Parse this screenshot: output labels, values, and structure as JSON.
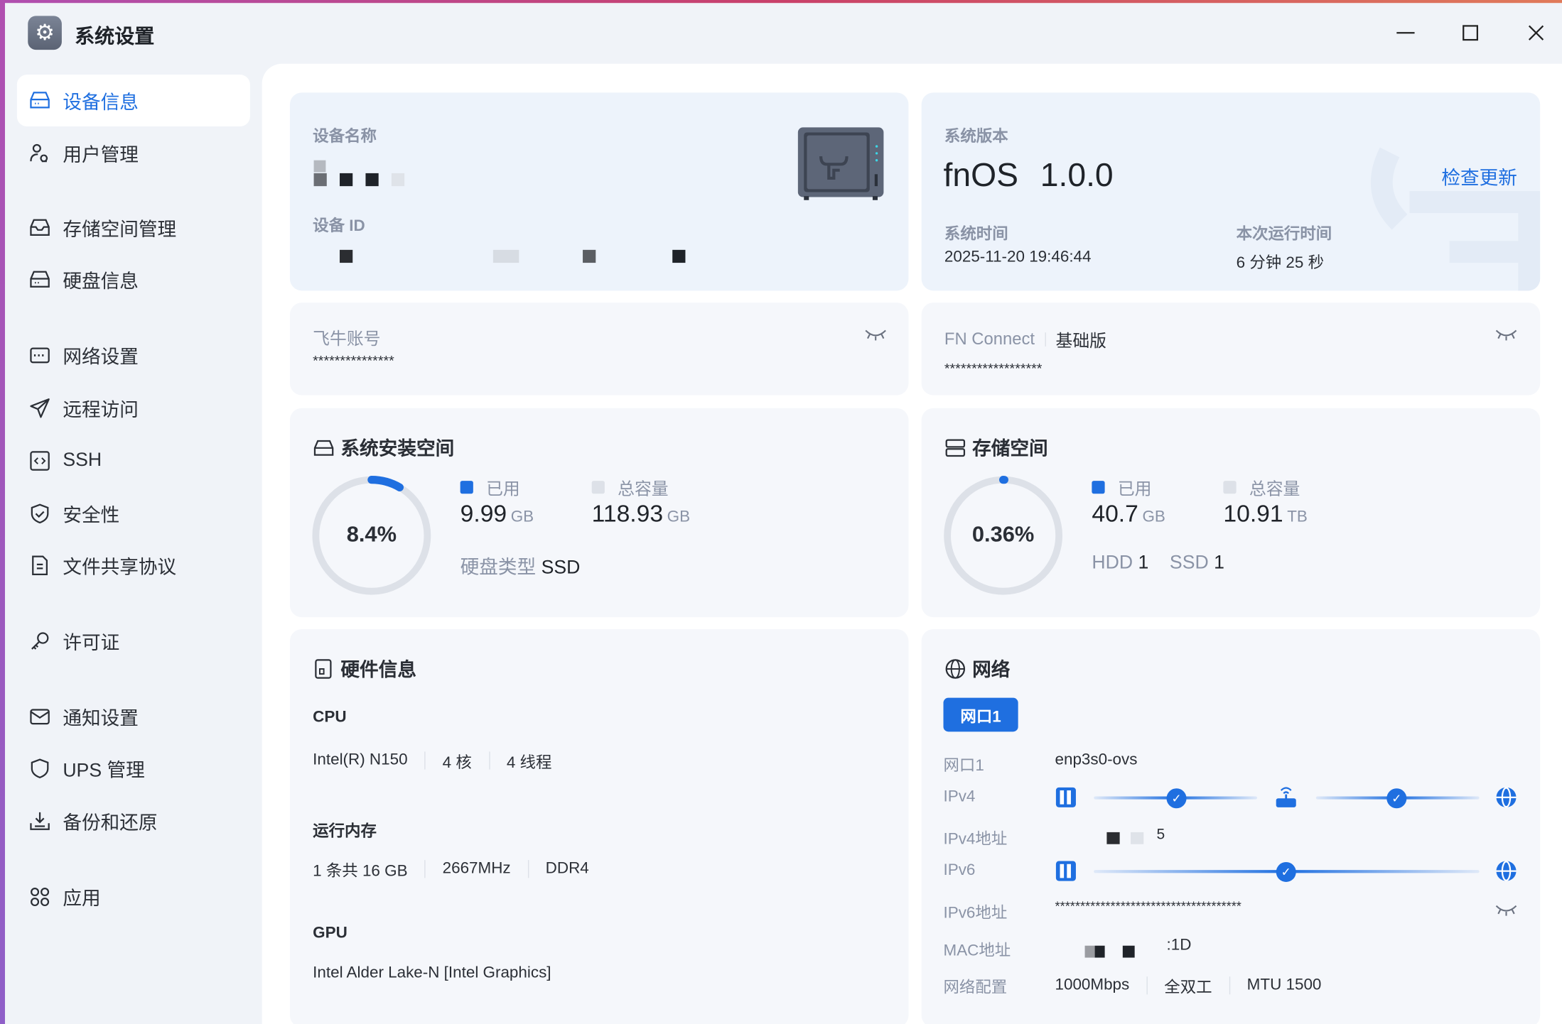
{
  "window": {
    "title": "系统设置",
    "minimize": "—",
    "maximize": "☐",
    "close": "✕"
  },
  "colors": {
    "accent": "#1f6fe0",
    "track": "#dde1e8"
  },
  "sidebar": {
    "items": [
      {
        "label": "设备信息",
        "icon": "device-icon",
        "active": true
      },
      {
        "label": "用户管理",
        "icon": "user-manage-icon"
      },
      {
        "label": "存储空间管理",
        "icon": "storage-icon"
      },
      {
        "label": "硬盘信息",
        "icon": "disk-icon"
      },
      {
        "label": "网络设置",
        "icon": "network-icon"
      },
      {
        "label": "远程访问",
        "icon": "send-icon"
      },
      {
        "label": "SSH",
        "icon": "terminal-icon"
      },
      {
        "label": "安全性",
        "icon": "shield-check-icon"
      },
      {
        "label": "文件共享协议",
        "icon": "file-icon"
      },
      {
        "label": "许可证",
        "icon": "key-icon"
      },
      {
        "label": "通知设置",
        "icon": "mail-icon"
      },
      {
        "label": "UPS 管理",
        "icon": "shield-icon"
      },
      {
        "label": "备份和还原",
        "icon": "download-icon"
      },
      {
        "label": "应用",
        "icon": "apps-icon"
      }
    ]
  },
  "device": {
    "name_label": "设备名称",
    "id_label": "设备 ID"
  },
  "system": {
    "version_label": "系统版本",
    "os": "fnOS",
    "version": "1.0.0",
    "check_update": "检查更新",
    "time_label": "系统时间",
    "time": "2025-11-20 19:46:44",
    "uptime_label": "本次运行时间",
    "uptime": "6 分钟 25 秒"
  },
  "account": {
    "label": "飞牛账号",
    "value": "***************"
  },
  "fnconnect": {
    "label": "FN Connect",
    "plan": "基础版",
    "value": "******************"
  },
  "install_space": {
    "title": "系统安装空间",
    "percent": "8.4%",
    "percent_value": 8.4,
    "used_label": "已用",
    "used": "9.99",
    "used_unit": "GB",
    "total_label": "总容量",
    "total": "118.93",
    "total_unit": "GB",
    "disk_type_label": "硬盘类型",
    "disk_type": "SSD"
  },
  "storage": {
    "title": "存储空间",
    "percent": "0.36%",
    "percent_value": 0.36,
    "used_label": "已用",
    "used": "40.7",
    "used_unit": "GB",
    "total_label": "总容量",
    "total": "10.91",
    "total_unit": "TB",
    "hdd_label": "HDD",
    "hdd": "1",
    "ssd_label": "SSD",
    "ssd": "1"
  },
  "hardware": {
    "title": "硬件信息",
    "cpu_label": "CPU",
    "cpu": [
      "Intel(R) N150",
      "4 核",
      "4 线程"
    ],
    "mem_label": "运行内存",
    "mem": [
      "1 条共 16 GB",
      "2667MHz",
      "DDR4"
    ],
    "gpu_label": "GPU",
    "gpu": "Intel Alder Lake-N [Intel Graphics]"
  },
  "network": {
    "title": "网络",
    "tab": "网口1",
    "rows": {
      "port_label": "网口1",
      "port": "enp3s0-ovs",
      "ipv4_label": "IPv4",
      "ipv4addr_label": "IPv4地址",
      "ipv4addr_tail": "5",
      "ipv6_label": "IPv6",
      "ipv6addr_label": "IPv6地址",
      "ipv6addr": "*************************************",
      "mac_label": "MAC地址",
      "mac_tail": ":1D",
      "config_label": "网络配置",
      "config": [
        "1000Mbps",
        "全双工",
        "MTU 1500"
      ]
    }
  }
}
